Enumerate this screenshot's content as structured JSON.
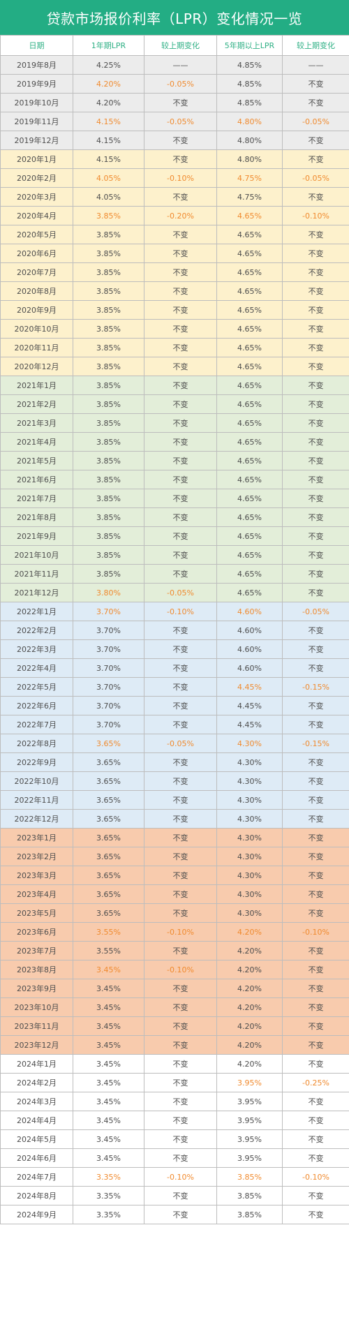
{
  "title": "贷款市场报价利率（LPR）变化情况一览",
  "colors": {
    "title_bg": "#23ad84",
    "header_text": "#2fb085",
    "highlight_text": "#f08a2e",
    "row_bg": {
      "2019": "#ececec",
      "2020": "#fdf1cc",
      "2021": "#e3eed9",
      "2022": "#deebf6",
      "2023": "#f8cbad",
      "2024": "#ffffff"
    }
  },
  "chart_data": {
    "type": "table",
    "title": "贷款市场报价利率（LPR）变化情况一览",
    "columns": [
      "日期",
      "1年期LPR",
      "较上期变化",
      "5年期以上LPR",
      "较上期变化"
    ],
    "rows": [
      [
        "2019年8月",
        "4.25%",
        "——",
        "4.85%",
        "——"
      ],
      [
        "2019年9月",
        "4.20%",
        "-0.05%",
        "4.85%",
        "不变"
      ],
      [
        "2019年10月",
        "4.20%",
        "不变",
        "4.85%",
        "不变"
      ],
      [
        "2019年11月",
        "4.15%",
        "-0.05%",
        "4.80%",
        "-0.05%"
      ],
      [
        "2019年12月",
        "4.15%",
        "不变",
        "4.80%",
        "不变"
      ],
      [
        "2020年1月",
        "4.15%",
        "不变",
        "4.80%",
        "不变"
      ],
      [
        "2020年2月",
        "4.05%",
        "-0.10%",
        "4.75%",
        "-0.05%"
      ],
      [
        "2020年3月",
        "4.05%",
        "不变",
        "4.75%",
        "不变"
      ],
      [
        "2020年4月",
        "3.85%",
        "-0.20%",
        "4.65%",
        "-0.10%"
      ],
      [
        "2020年5月",
        "3.85%",
        "不变",
        "4.65%",
        "不变"
      ],
      [
        "2020年6月",
        "3.85%",
        "不变",
        "4.65%",
        "不变"
      ],
      [
        "2020年7月",
        "3.85%",
        "不变",
        "4.65%",
        "不变"
      ],
      [
        "2020年8月",
        "3.85%",
        "不变",
        "4.65%",
        "不变"
      ],
      [
        "2020年9月",
        "3.85%",
        "不变",
        "4.65%",
        "不变"
      ],
      [
        "2020年10月",
        "3.85%",
        "不变",
        "4.65%",
        "不变"
      ],
      [
        "2020年11月",
        "3.85%",
        "不变",
        "4.65%",
        "不变"
      ],
      [
        "2020年12月",
        "3.85%",
        "不变",
        "4.65%",
        "不变"
      ],
      [
        "2021年1月",
        "3.85%",
        "不变",
        "4.65%",
        "不变"
      ],
      [
        "2021年2月",
        "3.85%",
        "不变",
        "4.65%",
        "不变"
      ],
      [
        "2021年3月",
        "3.85%",
        "不变",
        "4.65%",
        "不变"
      ],
      [
        "2021年4月",
        "3.85%",
        "不变",
        "4.65%",
        "不变"
      ],
      [
        "2021年5月",
        "3.85%",
        "不变",
        "4.65%",
        "不变"
      ],
      [
        "2021年6月",
        "3.85%",
        "不变",
        "4.65%",
        "不变"
      ],
      [
        "2021年7月",
        "3.85%",
        "不变",
        "4.65%",
        "不变"
      ],
      [
        "2021年8月",
        "3.85%",
        "不变",
        "4.65%",
        "不变"
      ],
      [
        "2021年9月",
        "3.85%",
        "不变",
        "4.65%",
        "不变"
      ],
      [
        "2021年10月",
        "3.85%",
        "不变",
        "4.65%",
        "不变"
      ],
      [
        "2021年11月",
        "3.85%",
        "不变",
        "4.65%",
        "不变"
      ],
      [
        "2021年12月",
        "3.80%",
        "-0.05%",
        "4.65%",
        "不变"
      ],
      [
        "2022年1月",
        "3.70%",
        "-0.10%",
        "4.60%",
        "-0.05%"
      ],
      [
        "2022年2月",
        "3.70%",
        "不变",
        "4.60%",
        "不变"
      ],
      [
        "2022年3月",
        "3.70%",
        "不变",
        "4.60%",
        "不变"
      ],
      [
        "2022年4月",
        "3.70%",
        "不变",
        "4.60%",
        "不变"
      ],
      [
        "2022年5月",
        "3.70%",
        "不变",
        "4.45%",
        "-0.15%"
      ],
      [
        "2022年6月",
        "3.70%",
        "不变",
        "4.45%",
        "不变"
      ],
      [
        "2022年7月",
        "3.70%",
        "不变",
        "4.45%",
        "不变"
      ],
      [
        "2022年8月",
        "3.65%",
        "-0.05%",
        "4.30%",
        "-0.15%"
      ],
      [
        "2022年9月",
        "3.65%",
        "不变",
        "4.30%",
        "不变"
      ],
      [
        "2022年10月",
        "3.65%",
        "不变",
        "4.30%",
        "不变"
      ],
      [
        "2022年11月",
        "3.65%",
        "不变",
        "4.30%",
        "不变"
      ],
      [
        "2022年12月",
        "3.65%",
        "不变",
        "4.30%",
        "不变"
      ],
      [
        "2023年1月",
        "3.65%",
        "不变",
        "4.30%",
        "不变"
      ],
      [
        "2023年2月",
        "3.65%",
        "不变",
        "4.30%",
        "不变"
      ],
      [
        "2023年3月",
        "3.65%",
        "不变",
        "4.30%",
        "不变"
      ],
      [
        "2023年4月",
        "3.65%",
        "不变",
        "4.30%",
        "不变"
      ],
      [
        "2023年5月",
        "3.65%",
        "不变",
        "4.30%",
        "不变"
      ],
      [
        "2023年6月",
        "3.55%",
        "-0.10%",
        "4.20%",
        "-0.10%"
      ],
      [
        "2023年7月",
        "3.55%",
        "不变",
        "4.20%",
        "不变"
      ],
      [
        "2023年8月",
        "3.45%",
        "-0.10%",
        "4.20%",
        "不变"
      ],
      [
        "2023年9月",
        "3.45%",
        "不变",
        "4.20%",
        "不变"
      ],
      [
        "2023年10月",
        "3.45%",
        "不变",
        "4.20%",
        "不变"
      ],
      [
        "2023年11月",
        "3.45%",
        "不变",
        "4.20%",
        "不变"
      ],
      [
        "2023年12月",
        "3.45%",
        "不变",
        "4.20%",
        "不变"
      ],
      [
        "2024年1月",
        "3.45%",
        "不变",
        "4.20%",
        "不变"
      ],
      [
        "2024年2月",
        "3.45%",
        "不变",
        "3.95%",
        "-0.25%"
      ],
      [
        "2024年3月",
        "3.45%",
        "不变",
        "3.95%",
        "不变"
      ],
      [
        "2024年4月",
        "3.45%",
        "不变",
        "3.95%",
        "不变"
      ],
      [
        "2024年5月",
        "3.45%",
        "不变",
        "3.95%",
        "不变"
      ],
      [
        "2024年6月",
        "3.45%",
        "不变",
        "3.95%",
        "不变"
      ],
      [
        "2024年7月",
        "3.35%",
        "-0.10%",
        "3.85%",
        "-0.10%"
      ],
      [
        "2024年8月",
        "3.35%",
        "不变",
        "3.85%",
        "不变"
      ],
      [
        "2024年9月",
        "3.35%",
        "不变",
        "3.85%",
        "不变"
      ]
    ]
  }
}
